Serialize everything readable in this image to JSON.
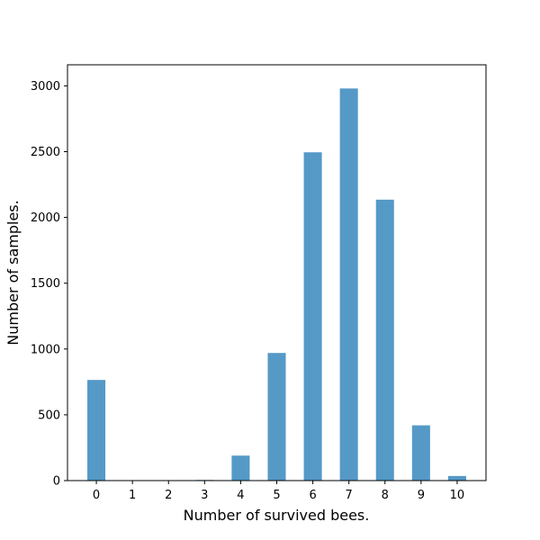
{
  "chart_data": {
    "type": "bar",
    "xlabel": "Number of survived bees.",
    "ylabel": "Number of samples.",
    "categories": [
      "0",
      "1",
      "2",
      "3",
      "4",
      "5",
      "6",
      "7",
      "8",
      "9",
      "10"
    ],
    "values": [
      765,
      0,
      0,
      5,
      190,
      970,
      2495,
      2980,
      2135,
      420,
      35
    ],
    "ylim": [
      0,
      3160
    ],
    "yticks": [
      "0",
      "500",
      "1000",
      "1500",
      "2000",
      "2500",
      "3000"
    ],
    "xlim": [
      -0.8,
      10.8
    ],
    "grid": false,
    "bar_color": "#5599c7"
  }
}
